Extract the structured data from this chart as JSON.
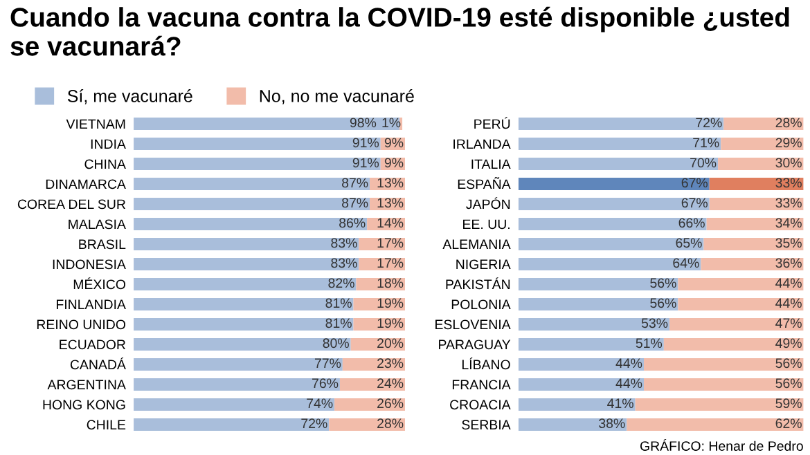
{
  "chart_data": [
    {
      "type": "bar",
      "title": "Cuando la vacuna contra la COVID-19 esté disponible ¿usted se vacunará?",
      "orientation": "horizontal",
      "stacked": true,
      "legend": "top left",
      "tick_labels": "y",
      "xlim": [
        0,
        100
      ],
      "categories": [
        "VIETNAM",
        "INDIA",
        "CHINA",
        "DINAMARCA",
        "COREA DEL SUR",
        "MALASIA",
        "BRASIL",
        "INDONESIA",
        "MÉXICO",
        "FINLANDIA",
        "REINO UNIDO",
        "ECUADOR",
        "CANADÁ",
        "ARGENTINA",
        "HONG KONG",
        "CHILE"
      ],
      "series": [
        {
          "name": "Sí, me vacunaré",
          "color": "#a9bedb",
          "values": [
            98,
            91,
            91,
            87,
            87,
            86,
            83,
            83,
            82,
            81,
            81,
            80,
            77,
            76,
            74,
            72
          ],
          "value_labels": [
            "98%",
            "91%",
            "91%",
            "87%",
            "87%",
            "86%",
            "83%",
            "83%",
            "82%",
            "81%",
            "81%",
            "80%",
            "77%",
            "76%",
            "74%",
            "72%"
          ]
        },
        {
          "name": "No, no me vacunaré",
          "color": "#f2bcaa",
          "values": [
            1,
            9,
            9,
            13,
            13,
            14,
            17,
            17,
            18,
            19,
            19,
            20,
            23,
            24,
            26,
            28
          ],
          "value_labels": [
            "1%",
            "9%",
            "9%",
            "13%",
            "13%",
            "14%",
            "17%",
            "17%",
            "18%",
            "19%",
            "19%",
            "20%",
            "23%",
            "24%",
            "26%",
            "28%"
          ]
        }
      ]
    },
    {
      "type": "bar",
      "orientation": "horizontal",
      "stacked": true,
      "tick_labels": "y",
      "xlim": [
        0,
        100
      ],
      "annotations": [
        "GRÁFICO: Henar de Pedro"
      ],
      "categories": [
        "PERÚ",
        "IRLANDA",
        "ITALIA",
        "ESPAÑA",
        "JAPÓN",
        "EE. UU.",
        "ALEMANIA",
        "NIGERIA",
        "PAKISTÁN",
        "POLONIA",
        "ESLOVENIA",
        "PARAGUAY",
        "LÍBANO",
        "FRANCIA",
        "CROACIA",
        "SERBIA"
      ],
      "series": [
        {
          "color": "#a9bedb",
          "colors": [
            "#a9bedb",
            "#a9bedb",
            "#a9bedb",
            "#5f86bb",
            "#a9bedb",
            "#a9bedb",
            "#a9bedb",
            "#a9bedb",
            "#a9bedb",
            "#a9bedb",
            "#a9bedb",
            "#a9bedb",
            "#a9bedb",
            "#a9bedb",
            "#a9bedb",
            "#a9bedb"
          ],
          "values": [
            72,
            71,
            70,
            67,
            67,
            66,
            65,
            64,
            56,
            56,
            53,
            51,
            44,
            44,
            41,
            38
          ],
          "value_labels": [
            "72%",
            "71%",
            "70%",
            "67%",
            "67%",
            "66%",
            "65%",
            "64%",
            "56%",
            "56%",
            "53%",
            "51%",
            "44%",
            "44%",
            "41%",
            "38%"
          ]
        },
        {
          "color": "#f2bcaa",
          "colors": [
            "#f2bcaa",
            "#f2bcaa",
            "#f2bcaa",
            "#e07f5f",
            "#f2bcaa",
            "#f2bcaa",
            "#f2bcaa",
            "#f2bcaa",
            "#f2bcaa",
            "#f2bcaa",
            "#f2bcaa",
            "#f2bcaa",
            "#f2bcaa",
            "#f2bcaa",
            "#f2bcaa",
            "#f2bcaa"
          ],
          "values": [
            28,
            29,
            30,
            33,
            33,
            34,
            35,
            36,
            44,
            44,
            47,
            49,
            56,
            56,
            59,
            62
          ],
          "value_labels": [
            "28%",
            "29%",
            "30%",
            "33%",
            "33%",
            "34%",
            "35%",
            "36%",
            "44%",
            "44%",
            "47%",
            "49%",
            "56%",
            "56%",
            "59%",
            "62%"
          ]
        }
      ]
    }
  ]
}
